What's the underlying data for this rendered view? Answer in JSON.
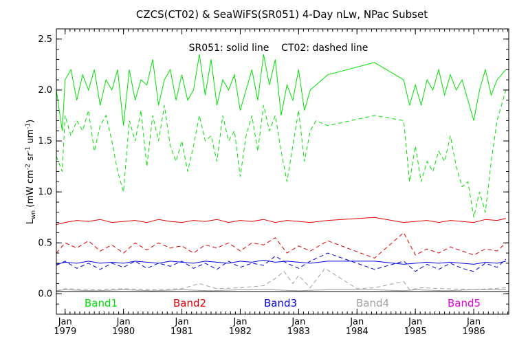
{
  "colors": {
    "axes": "#000000",
    "band1": "#00e000",
    "band2": "#e00000",
    "band3": "#0000e0",
    "band4": "#a0a0a0",
    "band5": "#e000e0",
    "background": "#ffffff"
  },
  "chart_data": {
    "type": "line",
    "title": "CZCS(CT02) & SeaWiFS(SR051) 4-Day nLw, NPac Subset",
    "subtitle": "SR051: solid line    CT02: dashed line",
    "ylabel": "L",
    "ylabel_sub": "wn",
    "ylabel_units": "(mW cm",
    "ylabel_units_rest": " sr",
    "ylabel_units_end": " um",
    "ylim": [
      -0.2,
      2.6
    ],
    "xlim": [
      1978.85,
      1986.6
    ],
    "y_ticks": [
      0.0,
      0.5,
      1.0,
      1.5,
      2.0,
      2.5
    ],
    "y_tick_labels": [
      "0.0",
      "0.5",
      "1.0",
      "1.5",
      "2.0",
      "2.5"
    ],
    "x_ticks": [
      1979,
      1980,
      1981,
      1982,
      1983,
      1984,
      1985,
      1986
    ],
    "x_tick_month": "Jan",
    "x_tick_year": [
      "1979",
      "1980",
      "1981",
      "1982",
      "1983",
      "1984",
      "1985",
      "1986"
    ],
    "reference_line": 0.02,
    "legend": [
      "Band1",
      "Band2",
      "Band3",
      "Band4",
      "Band5"
    ],
    "series": [
      {
        "name": "Band1",
        "style": "solid",
        "x": [
          1978.85,
          1978.95,
          1979.0,
          1979.1,
          1979.2,
          1979.3,
          1979.4,
          1979.5,
          1979.6,
          1979.7,
          1979.8,
          1979.9,
          1980.0,
          1980.1,
          1980.2,
          1980.3,
          1980.4,
          1980.5,
          1980.6,
          1980.7,
          1980.8,
          1980.9,
          1981.0,
          1981.1,
          1981.2,
          1981.3,
          1981.4,
          1981.5,
          1981.6,
          1981.7,
          1981.8,
          1981.9,
          1982.0,
          1982.1,
          1982.2,
          1982.3,
          1982.4,
          1982.5,
          1982.6,
          1982.7,
          1982.8,
          1982.9,
          1983.0,
          1983.1,
          1983.2,
          1983.3,
          1983.5,
          1984.3,
          1984.8,
          1984.9,
          1985.0,
          1985.1,
          1985.2,
          1985.3,
          1985.4,
          1985.5,
          1985.6,
          1985.7,
          1985.8,
          1985.9,
          1986.0,
          1986.1,
          1986.2,
          1986.3,
          1986.4,
          1986.55
        ],
        "y": [
          2.0,
          1.6,
          2.1,
          2.2,
          1.9,
          2.15,
          2.0,
          2.2,
          1.85,
          2.1,
          2.0,
          2.2,
          1.65,
          2.2,
          1.9,
          2.1,
          2.05,
          2.3,
          1.85,
          2.1,
          2.2,
          1.9,
          2.15,
          1.9,
          2.0,
          2.35,
          1.95,
          2.3,
          1.85,
          2.1,
          2.0,
          2.15,
          1.8,
          2.0,
          2.2,
          1.9,
          2.35,
          2.05,
          2.3,
          1.75,
          2.05,
          1.9,
          2.2,
          1.8,
          2.0,
          2.05,
          2.15,
          2.27,
          2.1,
          1.85,
          2.05,
          1.85,
          2.1,
          2.0,
          2.2,
          1.95,
          2.15,
          2.0,
          2.1,
          1.9,
          1.7,
          2.0,
          2.2,
          1.95,
          2.1,
          2.2
        ]
      },
      {
        "name": "Band1",
        "style": "dashed",
        "x": [
          1978.85,
          1978.95,
          1979.0,
          1979.1,
          1979.2,
          1979.3,
          1979.4,
          1979.5,
          1979.6,
          1979.7,
          1979.8,
          1979.9,
          1980.0,
          1980.1,
          1980.2,
          1980.3,
          1980.4,
          1980.5,
          1980.6,
          1980.7,
          1980.8,
          1980.9,
          1981.0,
          1981.1,
          1981.2,
          1981.3,
          1981.4,
          1981.5,
          1981.6,
          1981.7,
          1981.8,
          1981.9,
          1982.0,
          1982.1,
          1982.2,
          1982.3,
          1982.4,
          1982.5,
          1982.6,
          1982.7,
          1982.8,
          1982.9,
          1983.0,
          1983.1,
          1983.2,
          1983.3,
          1983.5,
          1984.3,
          1984.8,
          1984.9,
          1985.0,
          1985.1,
          1985.2,
          1985.3,
          1985.4,
          1985.5,
          1985.6,
          1985.7,
          1985.8,
          1985.9,
          1986.0,
          1986.1,
          1986.2,
          1986.3,
          1986.4,
          1986.55
        ],
        "y": [
          1.35,
          1.2,
          1.75,
          1.55,
          1.7,
          1.6,
          1.8,
          1.4,
          1.65,
          1.75,
          1.5,
          1.2,
          1.0,
          1.7,
          1.5,
          1.8,
          1.25,
          1.75,
          1.5,
          1.85,
          1.45,
          1.3,
          1.5,
          1.2,
          1.45,
          1.75,
          1.5,
          1.55,
          1.3,
          1.75,
          1.5,
          1.6,
          1.15,
          1.55,
          1.75,
          1.4,
          1.85,
          1.6,
          1.75,
          1.4,
          1.1,
          1.45,
          1.8,
          1.3,
          1.6,
          1.7,
          1.65,
          1.75,
          1.7,
          1.1,
          1.45,
          1.1,
          1.3,
          1.2,
          1.4,
          1.3,
          1.55,
          1.25,
          1.05,
          1.1,
          0.75,
          1.0,
          0.8,
          1.3,
          1.7,
          2.0
        ]
      },
      {
        "name": "Band2",
        "style": "solid",
        "x": [
          1978.85,
          1979.0,
          1979.2,
          1979.4,
          1979.6,
          1979.8,
          1980.0,
          1980.2,
          1980.4,
          1980.6,
          1980.8,
          1981.0,
          1981.2,
          1981.4,
          1981.6,
          1981.8,
          1982.0,
          1982.2,
          1982.4,
          1982.6,
          1982.8,
          1983.0,
          1983.2,
          1983.5,
          1984.3,
          1984.8,
          1985.0,
          1985.2,
          1985.4,
          1985.6,
          1985.8,
          1986.0,
          1986.2,
          1986.4,
          1986.55
        ],
        "y": [
          0.68,
          0.7,
          0.72,
          0.71,
          0.73,
          0.7,
          0.71,
          0.72,
          0.7,
          0.73,
          0.71,
          0.7,
          0.72,
          0.71,
          0.73,
          0.7,
          0.72,
          0.71,
          0.73,
          0.7,
          0.72,
          0.71,
          0.7,
          0.72,
          0.75,
          0.7,
          0.71,
          0.72,
          0.7,
          0.72,
          0.71,
          0.7,
          0.73,
          0.72,
          0.74
        ]
      },
      {
        "name": "Band2",
        "style": "dashed",
        "x": [
          1978.85,
          1979.0,
          1979.2,
          1979.4,
          1979.6,
          1979.8,
          1980.0,
          1980.2,
          1980.4,
          1980.6,
          1980.8,
          1981.0,
          1981.2,
          1981.4,
          1981.6,
          1981.8,
          1982.0,
          1982.2,
          1982.4,
          1982.6,
          1982.8,
          1983.0,
          1983.2,
          1983.5,
          1984.3,
          1984.8,
          1985.0,
          1985.2,
          1985.4,
          1985.6,
          1985.8,
          1986.0,
          1986.2,
          1986.4,
          1986.55
        ],
        "y": [
          0.4,
          0.5,
          0.45,
          0.52,
          0.42,
          0.48,
          0.4,
          0.5,
          0.43,
          0.5,
          0.45,
          0.47,
          0.4,
          0.48,
          0.45,
          0.5,
          0.42,
          0.5,
          0.48,
          0.55,
          0.4,
          0.47,
          0.42,
          0.52,
          0.35,
          0.6,
          0.38,
          0.44,
          0.4,
          0.46,
          0.42,
          0.38,
          0.44,
          0.42,
          0.5
        ]
      },
      {
        "name": "Band3",
        "style": "solid",
        "x": [
          1978.85,
          1979.0,
          1979.2,
          1979.4,
          1979.6,
          1979.8,
          1980.0,
          1980.2,
          1980.4,
          1980.6,
          1980.8,
          1981.0,
          1981.2,
          1981.4,
          1981.6,
          1981.8,
          1982.0,
          1982.2,
          1982.4,
          1982.6,
          1982.8,
          1983.0,
          1983.2,
          1983.5,
          1984.3,
          1984.8,
          1985.0,
          1985.2,
          1985.4,
          1985.6,
          1985.8,
          1986.0,
          1986.2,
          1986.4,
          1986.55
        ],
        "y": [
          0.29,
          0.31,
          0.3,
          0.32,
          0.3,
          0.31,
          0.3,
          0.32,
          0.31,
          0.3,
          0.32,
          0.31,
          0.3,
          0.32,
          0.31,
          0.3,
          0.32,
          0.31,
          0.33,
          0.31,
          0.32,
          0.31,
          0.3,
          0.32,
          0.32,
          0.29,
          0.3,
          0.31,
          0.3,
          0.31,
          0.3,
          0.29,
          0.31,
          0.3,
          0.32
        ]
      },
      {
        "name": "Band3",
        "style": "dashed",
        "x": [
          1978.85,
          1979.0,
          1979.2,
          1979.4,
          1979.6,
          1979.8,
          1980.0,
          1980.2,
          1980.4,
          1980.6,
          1980.8,
          1981.0,
          1981.2,
          1981.4,
          1981.6,
          1981.8,
          1982.0,
          1982.2,
          1982.4,
          1982.6,
          1982.8,
          1983.0,
          1983.2,
          1983.5,
          1984.3,
          1984.8,
          1985.0,
          1985.2,
          1985.4,
          1985.6,
          1985.8,
          1986.0,
          1986.2,
          1986.4,
          1986.55
        ],
        "y": [
          0.28,
          0.32,
          0.25,
          0.3,
          0.24,
          0.3,
          0.26,
          0.32,
          0.25,
          0.3,
          0.27,
          0.32,
          0.25,
          0.3,
          0.24,
          0.32,
          0.26,
          0.3,
          0.28,
          0.37,
          0.3,
          0.25,
          0.32,
          0.4,
          0.24,
          0.32,
          0.22,
          0.29,
          0.24,
          0.3,
          0.25,
          0.22,
          0.3,
          0.26,
          0.34
        ]
      },
      {
        "name": "Band4",
        "style": "solid",
        "x": [
          1978.85,
          1979.0,
          1979.5,
          1980.0,
          1980.5,
          1981.0,
          1981.5,
          1982.0,
          1982.5,
          1983.0,
          1983.5,
          1984.3,
          1984.8,
          1985.0,
          1985.5,
          1986.0,
          1986.55
        ],
        "y": [
          0.03,
          0.04,
          0.03,
          0.04,
          0.03,
          0.04,
          0.03,
          0.04,
          0.04,
          0.03,
          0.04,
          0.04,
          0.03,
          0.04,
          0.03,
          0.04,
          0.04
        ]
      },
      {
        "name": "Band4",
        "style": "dashed",
        "x": [
          1978.85,
          1979.0,
          1979.5,
          1980.0,
          1980.5,
          1981.0,
          1981.3,
          1981.6,
          1982.0,
          1982.4,
          1982.6,
          1982.75,
          1982.9,
          1983.0,
          1983.2,
          1983.45,
          1984.0,
          1984.3,
          1984.8,
          1984.9,
          1985.1,
          1985.5,
          1986.0,
          1986.55
        ],
        "y": [
          0.03,
          0.05,
          0.04,
          0.05,
          0.04,
          0.05,
          0.1,
          0.05,
          0.06,
          0.08,
          0.15,
          0.22,
          0.1,
          0.18,
          0.06,
          0.25,
          0.05,
          0.06,
          0.12,
          0.04,
          0.06,
          0.05,
          0.04,
          0.06
        ]
      }
    ]
  }
}
